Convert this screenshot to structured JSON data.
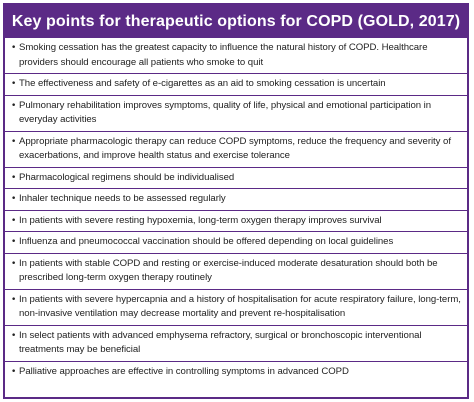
{
  "title": "Key points for therapeutic options for COPD (GOLD, 2017)",
  "bullet_glyph": "•",
  "points": [
    "Smoking cessation has the greatest capacity to influence the natural history of COPD. Healthcare providers should encourage all patients who smoke to quit",
    "The effectiveness and safety of e-cigarettes as an aid to smoking cessation is uncertain",
    "Pulmonary rehabilitation improves symptoms, quality of life, physical and emotional participation in everyday activities",
    "Appropriate pharmacologic therapy can reduce COPD symptoms, reduce the frequency and severity of exacerbations, and improve health status and exercise tolerance",
    "Pharmacological regimens should be individualised",
    "Inhaler technique needs to be assessed regularly",
    "In patients with severe resting hypoxemia, long-term oxygen therapy improves survival",
    "Influenza and pneumococcal vaccination should be offered depending on local guidelines",
    "In patients with stable COPD and resting or exercise-induced moderate desaturation should both be prescribed long-term oxygen therapy routinely",
    "In patients with severe hypercapnia and a history of hospitalisation for acute respiratory failure, long-term, non-invasive ventilation may decrease mortality and prevent re-hospitalisation",
    "In select patients with advanced emphysema refractory, surgical or bronchoscopic interventional treatments may be beneficial",
    "Palliative approaches are effective in controlling symptoms in advanced COPD"
  ],
  "colors": {
    "accent": "#5b2a86",
    "text": "#222222",
    "background": "#ffffff"
  }
}
